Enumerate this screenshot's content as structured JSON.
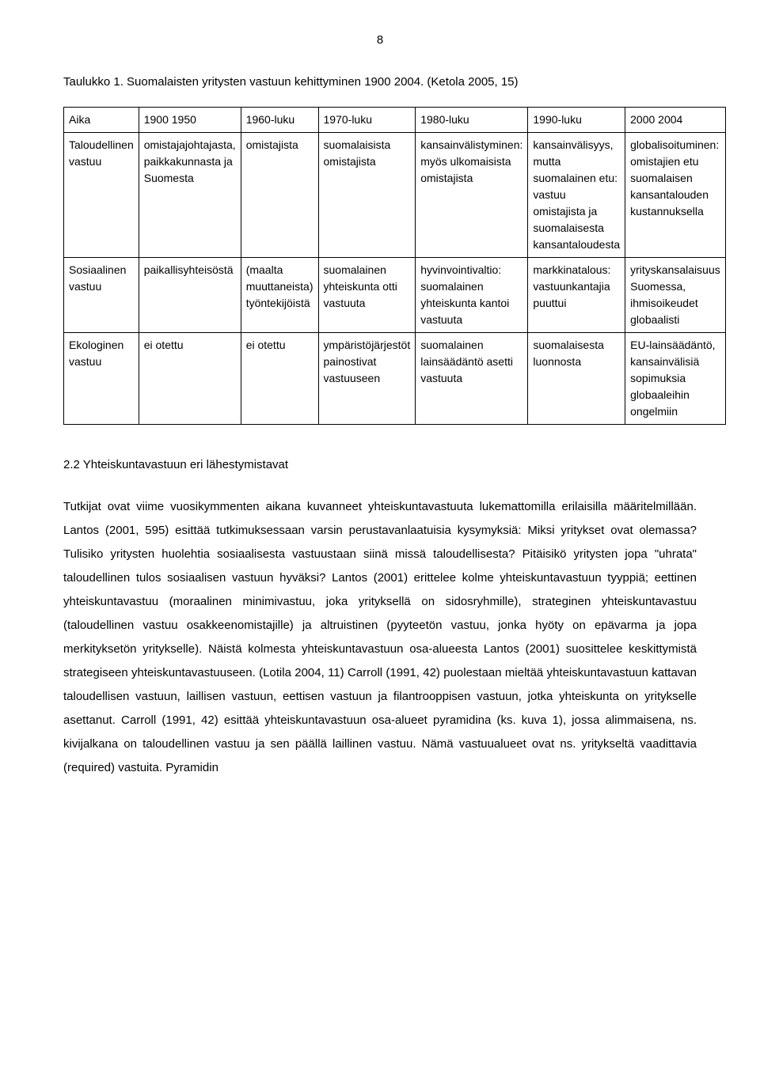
{
  "page_number": "8",
  "caption": "Taulukko 1. Suomalaisten yritysten vastuun kehittyminen 1900 2004. (Ketola 2005, 15)",
  "table": {
    "columns": [
      "Aika",
      "1900 1950",
      "1960-luku",
      "1970-luku",
      "1980-luku",
      "1990-luku",
      "2000 2004"
    ],
    "rows": [
      {
        "label": "Taloudellinen vastuu",
        "c1": "omistajajohtajasta, paikkakunnasta ja Suomesta",
        "c2": "omistajista",
        "c3": "suomalaisista omistajista",
        "c4": "kansainvälistyminen: myös ulkomaisista omistajista",
        "c5": "kansainvälisyys, mutta suomalainen etu: vastuu omistajista ja suomalaisesta kansantaloudesta",
        "c6": "globalisoituminen: omistajien etu suomalaisen kansantalouden kustannuksella"
      },
      {
        "label": "Sosiaalinen vastuu",
        "c1": "paikallisyhteisöstä",
        "c2": "(maalta muuttaneista) työntekijöistä",
        "c3": "suomalainen yhteiskunta otti vastuuta",
        "c4": "hyvinvointivaltio: suomalainen yhteiskunta kantoi vastuuta",
        "c5": "markkinatalous: vastuunkantajia puuttui",
        "c6": "yrityskansalaisuus Suomessa, ihmisoikeudet globaalisti"
      },
      {
        "label": "Ekologinen vastuu",
        "c1": "ei otettu",
        "c2": "ei otettu",
        "c3": "ympäristöjärjestöt painostivat vastuuseen",
        "c4": "suomalainen lainsäädäntö asetti vastuuta",
        "c5": "suomalaisesta luonnosta",
        "c6": "EU-lainsäädäntö, kansainvälisiä sopimuksia globaaleihin ongelmiin"
      }
    ]
  },
  "section_heading": "2.2 Yhteiskuntavastuun eri lähestymistavat",
  "body": "Tutkijat ovat viime vuosikymmenten aikana kuvanneet yhteiskuntavastuuta lukemattomilla erilaisilla määritelmillään. Lantos (2001, 595) esittää tutkimuksessaan varsin perustavanlaatuisia kysymyksiä: Miksi yritykset ovat olemassa? Tulisiko yritysten huolehtia sosiaalisesta vastuustaan siinä missä taloudellisesta? Pitäisikö yritysten jopa \"uhrata\" taloudellinen tulos sosiaalisen vastuun hyväksi? Lantos (2001) erittelee kolme yhteiskuntavastuun tyyppiä; eettinen yhteiskuntavastuu (moraalinen minimivastuu, joka yrityksellä on sidosryhmille), strateginen yhteiskuntavastuu (taloudellinen vastuu osakkeenomistajille) ja altruistinen (pyyteetön vastuu, jonka hyöty on epävarma ja jopa merkityksetön yritykselle). Näistä kolmesta yhteiskuntavastuun osa-alueesta Lantos (2001) suosittelee keskittymistä strategiseen yhteiskuntavastuuseen. (Lotila 2004, 11) Carroll (1991, 42) puolestaan mieltää yhteiskuntavastuun kattavan taloudellisen vastuun, laillisen vastuun, eettisen vastuun ja filantrooppisen vastuun, jotka yhteiskunta on yritykselle asettanut. Carroll (1991, 42) esittää yhteiskuntavastuun osa-alueet pyramidina (ks. kuva 1), jossa alimmaisena, ns. kivijalkana on taloudellinen vastuu ja sen päällä laillinen vastuu. Nämä vastuualueet ovat ns. yritykseltä vaadittavia (required) vastuita. Pyramidin"
}
